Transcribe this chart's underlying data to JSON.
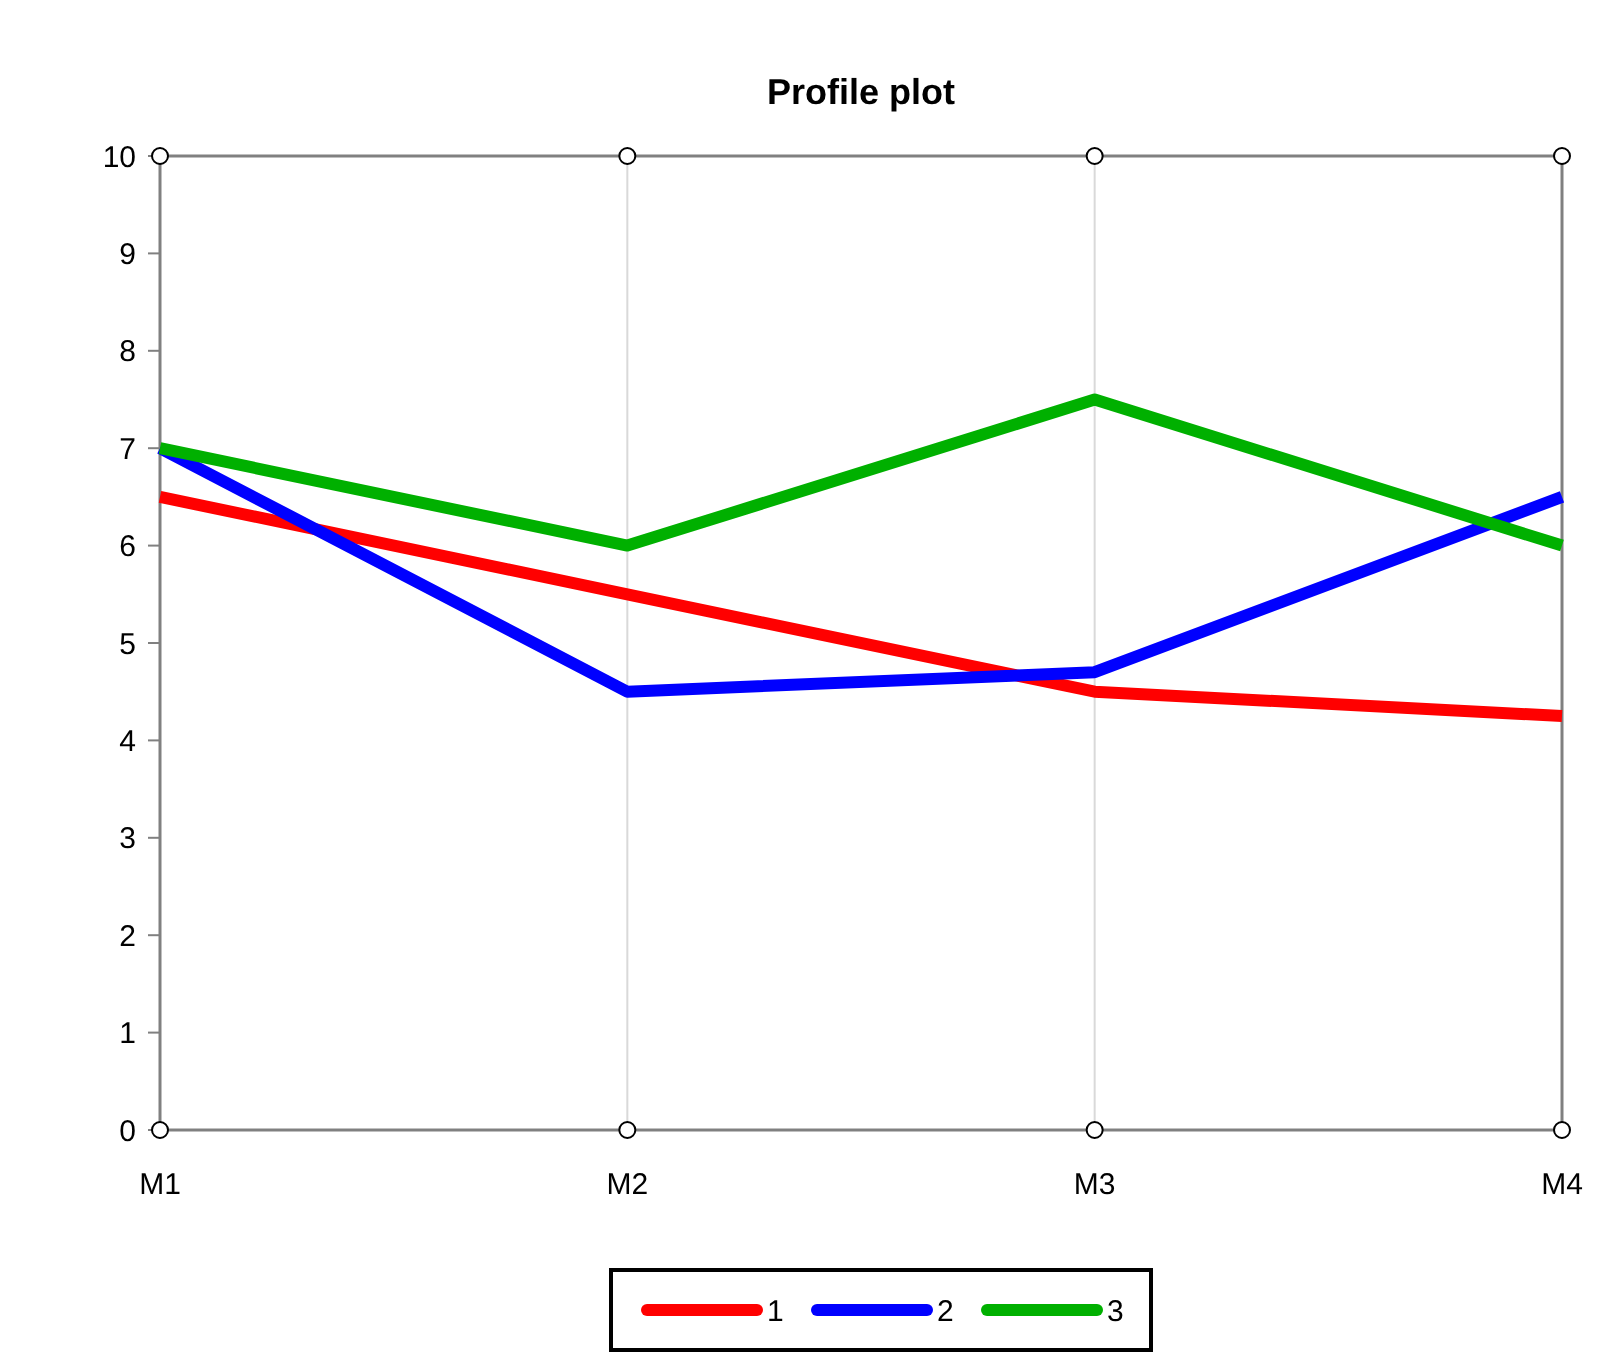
{
  "chart_data": {
    "type": "line",
    "title": "Profile plot",
    "categories": [
      "M1",
      "M2",
      "M3",
      "M4"
    ],
    "series": [
      {
        "name": "1",
        "color": "#ff0000",
        "values": [
          6.5,
          5.5,
          4.5,
          4.25
        ],
        "marker": "none"
      },
      {
        "name": "2",
        "color": "#0000ff",
        "values": [
          7,
          4.5,
          4.7,
          6.5
        ],
        "marker": "none"
      },
      {
        "name": "3",
        "color": "#00b000",
        "values": [
          7,
          6,
          7.5,
          6
        ],
        "marker": "none"
      },
      {
        "type": "scatter",
        "color": "#000000",
        "values": [
          10,
          10,
          10,
          10
        ],
        "marker": "circle"
      },
      {
        "type": "scatter",
        "color": "#000000",
        "values": [
          0,
          0,
          0,
          0
        ],
        "marker": "circle"
      }
    ],
    "ylim": [
      0,
      10
    ],
    "yticks": [
      0,
      1,
      2,
      3,
      4,
      5,
      6,
      7,
      8,
      9,
      10
    ],
    "grid": "x",
    "legend": "bottom",
    "line_style": "solid"
  }
}
